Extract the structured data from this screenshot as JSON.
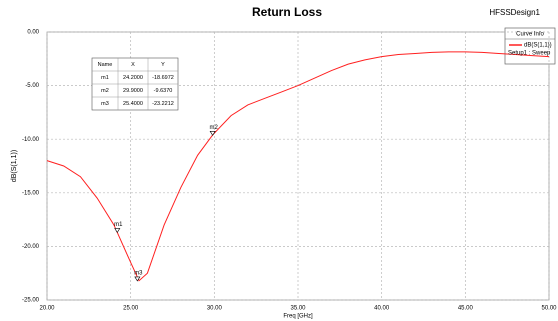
{
  "chart_data": {
    "type": "line",
    "title": "Return Loss",
    "design_name": "HFSSDesign1",
    "x_label": "Freq [GHz]",
    "y_label": "dB(S(1,1))",
    "legend_title": "Curve Info",
    "x": [
      20,
      21,
      22,
      23,
      24,
      24.2,
      25,
      25.5,
      26,
      27,
      28,
      29,
      29.9,
      31,
      32,
      33,
      34,
      35,
      36,
      37,
      38,
      39,
      40,
      41,
      42,
      43,
      44,
      45,
      46,
      47,
      48,
      49,
      50
    ],
    "series": [
      {
        "name": "dB(S(1,1))",
        "setup": "Setup1 : Sweep",
        "color": "#ff2020",
        "values": [
          -12.0,
          -12.5,
          -13.5,
          -15.5,
          -18.0,
          -18.7,
          -21.5,
          -23.2,
          -22.5,
          -18.0,
          -14.5,
          -11.5,
          -9.6,
          -7.8,
          -6.8,
          -6.2,
          -5.6,
          -5.0,
          -4.3,
          -3.6,
          -3.0,
          -2.6,
          -2.3,
          -2.1,
          -2.0,
          -1.9,
          -1.85,
          -1.85,
          -1.9,
          -2.0,
          -2.1,
          -2.2,
          -2.3
        ]
      }
    ],
    "xlim": [
      20,
      50
    ],
    "ylim": [
      -25,
      0
    ],
    "xticks": [
      {
        "value": 20,
        "label": "20.00"
      },
      {
        "value": 25,
        "label": "25.00"
      },
      {
        "value": 30,
        "label": "30.00"
      },
      {
        "value": 35,
        "label": "35.00"
      },
      {
        "value": 40,
        "label": "40.00"
      },
      {
        "value": 45,
        "label": "45.00"
      },
      {
        "value": 50,
        "label": "50.00"
      }
    ],
    "yticks": [
      {
        "value": 0,
        "label": "0.00"
      },
      {
        "value": -5,
        "label": "-5.00"
      },
      {
        "value": -10,
        "label": "-10.00"
      },
      {
        "value": -15,
        "label": "-15.00"
      },
      {
        "value": -20,
        "label": "-20.00"
      },
      {
        "value": -25,
        "label": "-25.00"
      }
    ],
    "grid": true,
    "marker_columns": [
      "Name",
      "X",
      "Y"
    ],
    "markers": [
      {
        "name": "m1",
        "x": 24.2,
        "y": -18.6972,
        "x_label": "24.2000",
        "y_label": "-18.6972"
      },
      {
        "name": "m2",
        "x": 29.9,
        "y": -9.637,
        "x_label": "29.9000",
        "y_label": "-9.6370"
      },
      {
        "name": "m3",
        "x": 25.4,
        "y": -23.2212,
        "x_label": "25.4000",
        "y_label": "-23.2212"
      }
    ]
  }
}
